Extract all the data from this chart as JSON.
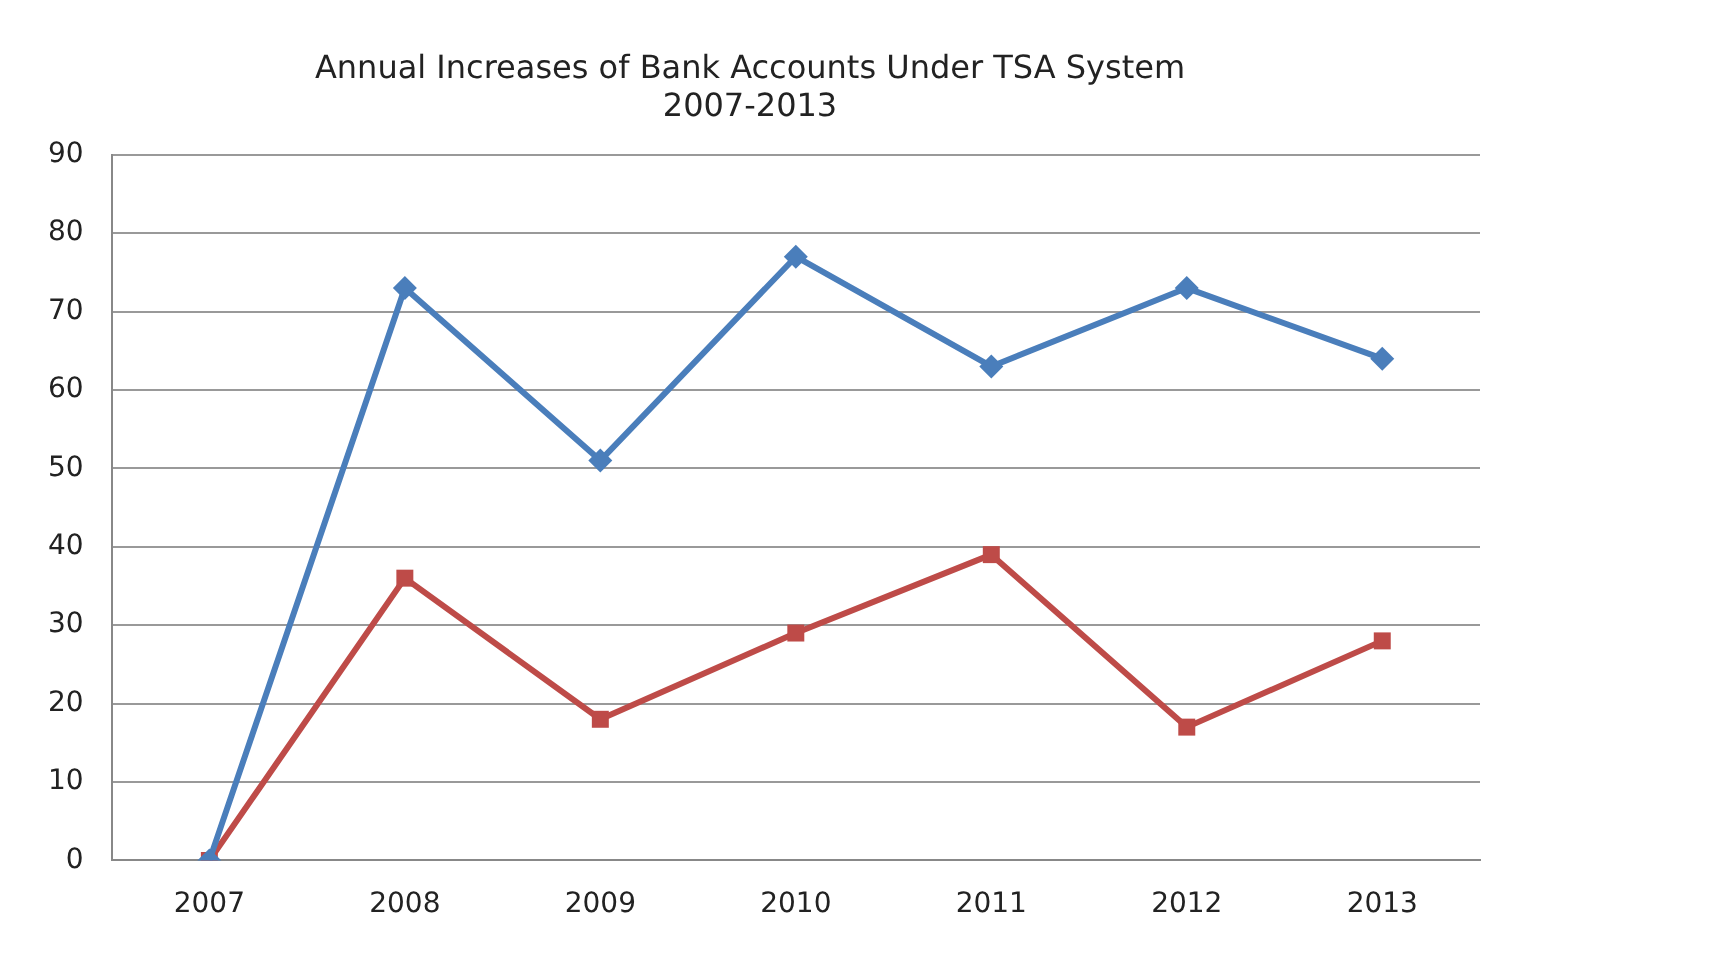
{
  "chart_data": {
    "type": "line",
    "title": [
      "Annual Increases of Bank Accounts Under TSA System",
      "2007-2013"
    ],
    "categories": [
      "2007",
      "2008",
      "2009",
      "2010",
      "2011",
      "2012",
      "2013"
    ],
    "series": [
      {
        "color": "#4a7ebb",
        "marker": "diamond",
        "values": [
          0,
          73,
          51,
          77,
          63,
          73,
          64
        ]
      },
      {
        "color": "#be4b48",
        "marker": "square",
        "values": [
          0,
          36,
          18,
          29,
          39,
          17,
          28
        ]
      }
    ],
    "ylim": [
      0,
      90
    ],
    "yticks": [
      0,
      10,
      20,
      30,
      40,
      50,
      60,
      70,
      80,
      90
    ],
    "grid": "y",
    "legend": false,
    "line_style": "solid"
  }
}
